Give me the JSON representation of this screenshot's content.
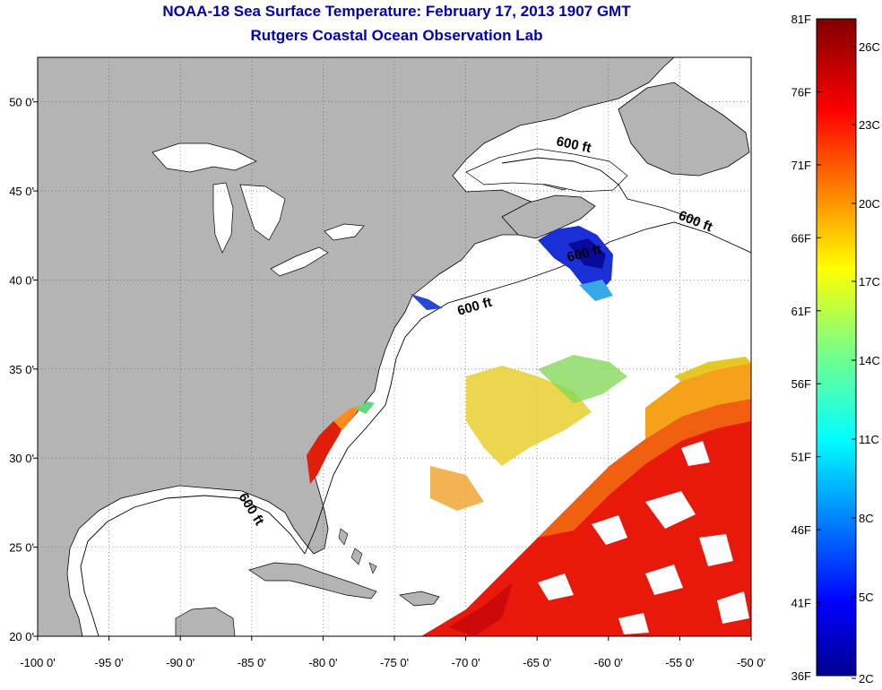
{
  "title": "NOAA-18 Sea Surface Temperature:  February 17, 2013 1907 GMT",
  "subtitle": "Rutgers Coastal Ocean Observation Lab",
  "map": {
    "lon_range": [
      -100,
      -50
    ],
    "lat_range": [
      20,
      52.5
    ],
    "x_ticks": [
      {
        "lon": -100,
        "label": "-100 0'"
      },
      {
        "lon": -95,
        "label": "-95 0'"
      },
      {
        "lon": -90,
        "label": "-90 0'"
      },
      {
        "lon": -85,
        "label": "-85 0'"
      },
      {
        "lon": -80,
        "label": "-80 0'"
      },
      {
        "lon": -75,
        "label": "-75 0'"
      },
      {
        "lon": -70,
        "label": "-70 0'"
      },
      {
        "lon": -65,
        "label": "-65 0'"
      },
      {
        "lon": -60,
        "label": "-60 0'"
      },
      {
        "lon": -55,
        "label": "-55 0'"
      },
      {
        "lon": -50,
        "label": "-50 0'"
      }
    ],
    "y_ticks": [
      {
        "lat": 50,
        "label": "50 0'"
      },
      {
        "lat": 45,
        "label": "45 0'"
      },
      {
        "lat": 40,
        "label": "40 0'"
      },
      {
        "lat": 35,
        "label": "35 0'"
      },
      {
        "lat": 30,
        "label": "30 0'"
      },
      {
        "lat": 25,
        "label": "25 0'"
      },
      {
        "lat": 20,
        "label": "20 0'"
      }
    ],
    "contour_labels": [
      "600 ft",
      "600 ft",
      "600 ft",
      "600 ft",
      "600 ft"
    ],
    "land_color": "#b4b4b4",
    "water_color": "#ffffff",
    "grid": true
  },
  "colorbar": {
    "f_labels": [
      "81F",
      "76F",
      "71F",
      "66F",
      "61F",
      "56F",
      "51F",
      "46F",
      "41F",
      "36F"
    ],
    "c_labels": [
      "26C",
      "23C",
      "20C",
      "17C",
      "14C",
      "11C",
      "8C",
      "5C",
      "2C"
    ]
  }
}
